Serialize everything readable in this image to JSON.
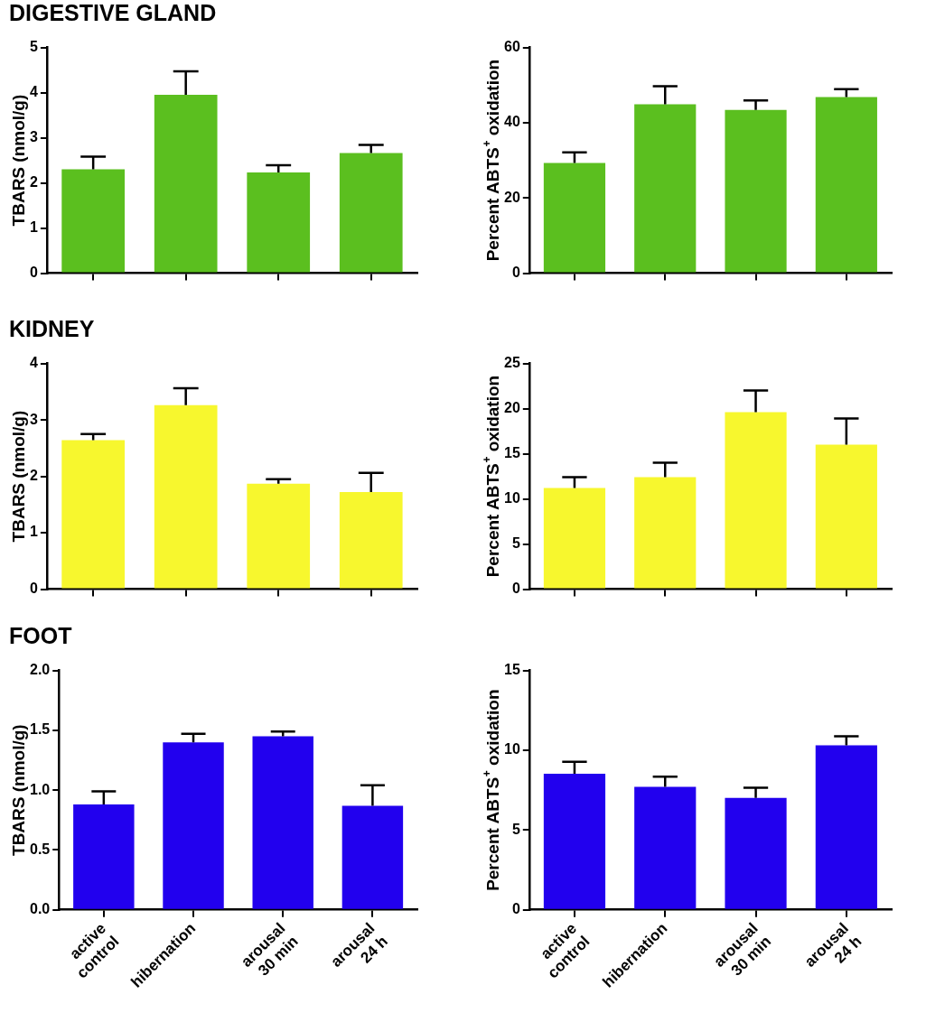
{
  "chart_data": [
    {
      "type": "bar",
      "title": "DIGESTIVE GLAND",
      "ylabel": "TBARS (nmol/g)",
      "categories": [
        null,
        null,
        null,
        null
      ],
      "values": [
        2.3,
        3.95,
        2.23,
        2.66
      ],
      "errors": [
        0.28,
        0.52,
        0.16,
        0.18
      ],
      "color": "#5bbf1f",
      "ylim": [
        0,
        5
      ],
      "yticks": [
        0,
        1,
        2,
        3,
        4,
        5
      ]
    },
    {
      "type": "bar",
      "ylabel": "Percent ABTS$^{+}$ oxidation",
      "categories": [
        null,
        null,
        null,
        null
      ],
      "values": [
        29.3,
        44.9,
        43.4,
        46.8
      ],
      "errors": [
        2.8,
        4.8,
        2.5,
        2.1
      ],
      "color": "#5bbf1f",
      "ylim": [
        0,
        60
      ],
      "yticks": [
        0,
        20,
        40,
        60
      ]
    },
    {
      "type": "bar",
      "title": "KIDNEY",
      "ylabel": "TBARS (nmol/g)",
      "categories": [
        null,
        null,
        null,
        null
      ],
      "values": [
        2.64,
        3.26,
        1.87,
        1.72
      ],
      "errors": [
        0.11,
        0.3,
        0.08,
        0.34
      ],
      "color": "#f7f72e",
      "ylim": [
        0,
        4
      ],
      "yticks": [
        0,
        1,
        2,
        3,
        4
      ]
    },
    {
      "type": "bar",
      "ylabel": "Percent ABTS$^{+}$ oxidation",
      "categories": [
        null,
        null,
        null,
        null
      ],
      "values": [
        11.2,
        12.4,
        19.6,
        16.0
      ],
      "errors": [
        1.2,
        1.6,
        2.4,
        2.9
      ],
      "color": "#f7f72e",
      "ylim": [
        0,
        25
      ],
      "yticks": [
        0,
        5,
        10,
        15,
        20,
        25
      ]
    },
    {
      "type": "bar",
      "title": "FOOT",
      "ylabel": "TBARS (nmol/g)",
      "categories": [
        "active\ncontrol",
        "hibernation",
        "arousal\n30 min",
        "arousal\n24 h"
      ],
      "values": [
        0.88,
        1.4,
        1.45,
        0.87
      ],
      "errors": [
        0.11,
        0.07,
        0.04,
        0.17
      ],
      "color": "#2200ee",
      "ylim": [
        0,
        2
      ],
      "yticks": [
        {
          "value": 0,
          "label": "0.0"
        },
        0.5,
        {
          "value": 1,
          "label": "1.0"
        },
        1.5,
        {
          "value": 2,
          "label": "2.0"
        }
      ]
    },
    {
      "type": "bar",
      "ylabel": "Percent ABTS$^{+}$ oxidation",
      "categories": [
        "active\ncontrol",
        "hibernation",
        "arousal\n30 min",
        "arousal\n24 h"
      ],
      "values": [
        8.53,
        7.71,
        7.02,
        10.31
      ],
      "errors": [
        0.74,
        0.64,
        0.63,
        0.56
      ],
      "color": "#2200ee",
      "ylim": [
        0,
        15
      ],
      "yticks": [
        0,
        5,
        10,
        15
      ]
    }
  ]
}
